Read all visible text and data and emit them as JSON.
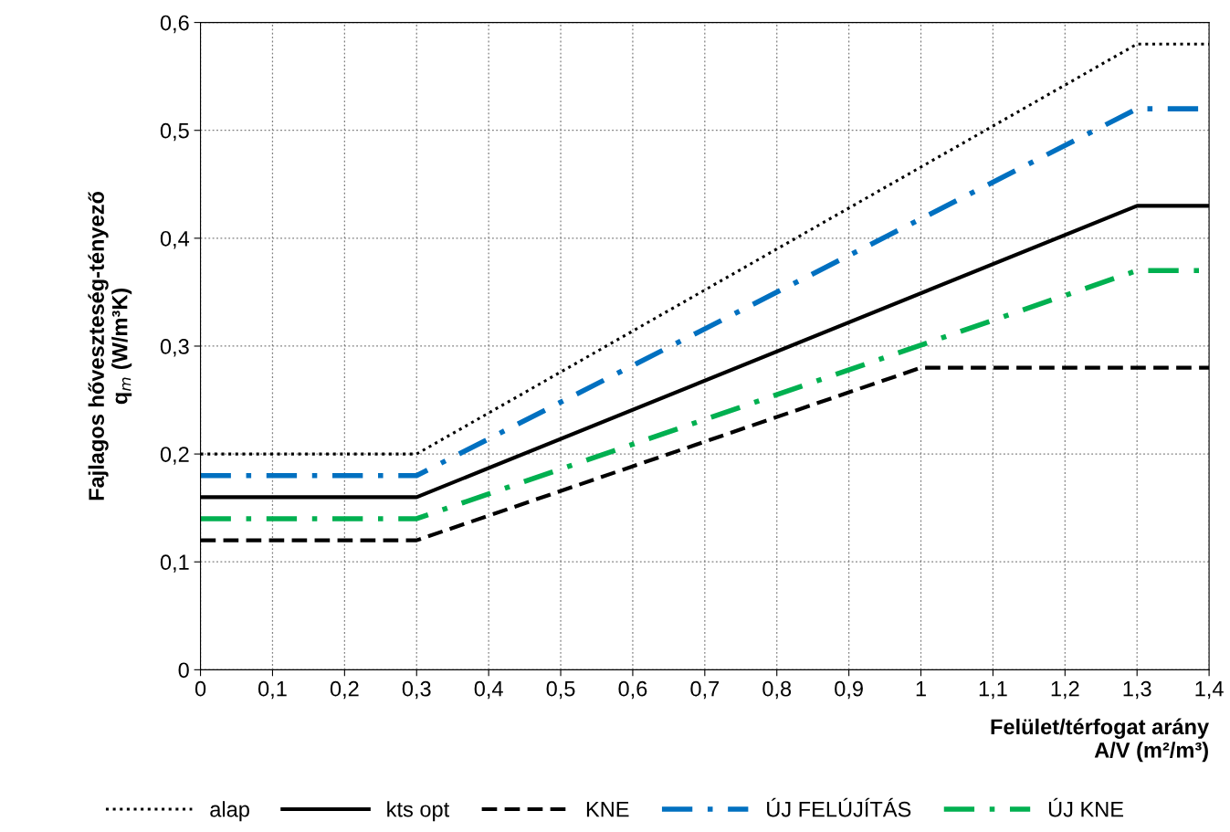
{
  "chart_data": {
    "type": "line",
    "xlabel": "Felület/térfogat arány\nA/V (m²/m³)",
    "ylabel": "Fajlagos hőveszteség-tényező\nq$_{m}$ (W/m³K)",
    "series": [
      {
        "name": "alap",
        "color": "#000000",
        "line_style": "dotted",
        "x": [
          0,
          0.3,
          1.3,
          1.4
        ],
        "values": [
          0.2,
          0.2,
          0.58,
          0.58
        ]
      },
      {
        "name": "kts opt",
        "color": "#000000",
        "line_style": "solid",
        "x": [
          0,
          0.3,
          1.3,
          1.4
        ],
        "values": [
          0.16,
          0.16,
          0.43,
          0.43
        ]
      },
      {
        "name": "KNE",
        "color": "#000000",
        "line_style": "dashed",
        "x": [
          0,
          0.3,
          1,
          1.4
        ],
        "values": [
          0.12,
          0.12,
          0.28,
          0.28
        ]
      },
      {
        "name": "ÚJ FELÚJÍTÁS",
        "color": "#0070c0",
        "line_style": "dashdot",
        "x": [
          0,
          0.3,
          1.3,
          1.4
        ],
        "values": [
          0.18,
          0.18,
          0.52,
          0.52
        ]
      },
      {
        "name": "ÚJ KNE",
        "color": "#00b050",
        "line_style": "dashdot",
        "x": [
          0,
          0.3,
          1.3,
          1.4
        ],
        "values": [
          0.14,
          0.14,
          0.37,
          0.37
        ]
      }
    ],
    "xlim": [
      0,
      1.4
    ],
    "ylim": [
      0,
      0.6
    ],
    "xticks": [
      0,
      {
        "value": 0.1,
        "label": "0,1"
      },
      {
        "value": 0.2,
        "label": "0,2"
      },
      {
        "value": 0.3,
        "label": "0,3"
      },
      {
        "value": 0.4,
        "label": "0,4"
      },
      {
        "value": 0.5,
        "label": "0,5"
      },
      {
        "value": 0.6,
        "label": "0,6"
      },
      {
        "value": 0.7,
        "label": "0,7"
      },
      {
        "value": 0.8,
        "label": "0,8"
      },
      {
        "value": 0.9,
        "label": "0,9"
      },
      1,
      {
        "value": 1.1,
        "label": "1,1"
      },
      {
        "value": 1.2,
        "label": "1,2"
      },
      {
        "value": 1.3,
        "label": "1,3"
      },
      {
        "value": 1.4,
        "label": "1,4"
      }
    ],
    "yticks": [
      0,
      {
        "value": 0.1,
        "label": "0,1"
      },
      {
        "value": 0.2,
        "label": "0,2"
      },
      {
        "value": 0.3,
        "label": "0,3"
      },
      {
        "value": 0.4,
        "label": "0,4"
      },
      {
        "value": 0.5,
        "label": "0,5"
      },
      {
        "value": 0.6,
        "label": "0,6"
      }
    ],
    "grid": true,
    "legend": "bottom",
    "marker": "none"
  }
}
